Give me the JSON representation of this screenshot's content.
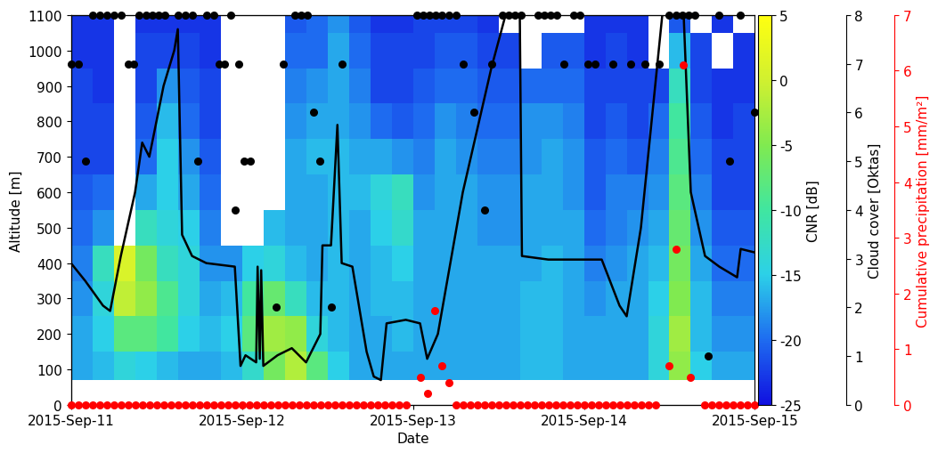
{
  "chart_data": {
    "type": "heatmap",
    "xlabel": "Date",
    "ylabel": "Altitude [m]",
    "xlim": [
      0,
      96
    ],
    "xticks": [
      {
        "value": 0,
        "label": "2015-Sep-11"
      },
      {
        "value": 24,
        "label": "2015-Sep-12"
      },
      {
        "value": 48,
        "label": "2015-Sep-13"
      },
      {
        "value": 72,
        "label": "2015-Sep-14"
      },
      {
        "value": 96,
        "label": "2015-Sep-15"
      }
    ],
    "ylim": [
      0,
      1100
    ],
    "yticks": [
      0,
      100,
      200,
      300,
      400,
      500,
      600,
      700,
      800,
      900,
      1000,
      1100
    ],
    "y2label": "Cloud cover [Oktas]",
    "y2lim": [
      0,
      8
    ],
    "y2ticks": [
      0,
      1,
      2,
      3,
      4,
      5,
      6,
      7,
      8
    ],
    "y3label": "Cumulative precipitation [mm/m²]",
    "y3lim": [
      0,
      7
    ],
    "y3ticks": [
      0,
      1,
      2,
      3,
      4,
      5,
      6,
      7
    ],
    "heatmap": {
      "colorbar_label": "CNR [dB]",
      "colorbar_range": [
        -25,
        5
      ],
      "colorbar_ticks": [
        -25,
        -20,
        -15,
        -10,
        -5,
        0,
        5
      ],
      "colors": [
        "#1010e0",
        "#1e6cf0",
        "#2cd0e8",
        "#40e6a0",
        "#80ea50",
        "#d0f030",
        "#ffff10"
      ],
      "x_edges": [
        0,
        3,
        6,
        9,
        12,
        15,
        18,
        21,
        24,
        27,
        30,
        33,
        36,
        39,
        42,
        45,
        48,
        51,
        54,
        57,
        60,
        63,
        66,
        69,
        72,
        75,
        78,
        81,
        84,
        87,
        90,
        93,
        96
      ],
      "y_edges": [
        70,
        150,
        250,
        350,
        450,
        550,
        650,
        750,
        850,
        950,
        1050,
        1100
      ],
      "cells": [
        [
          -17,
          -17,
          -18,
          -19,
          -20,
          -21,
          -22,
          -22,
          -22,
          -23,
          -23
        ],
        [
          -16,
          -15,
          -14,
          -12,
          -18,
          -20,
          -22,
          -22,
          -23,
          -23,
          -23
        ],
        [
          -14,
          -8,
          -1,
          1,
          null,
          null,
          null,
          null,
          null,
          null,
          null
        ],
        [
          -15,
          -8,
          -4,
          -6,
          -12,
          -17,
          -20,
          -21,
          -22,
          -22,
          -23
        ],
        [
          -16,
          -10,
          -9,
          -12,
          -14,
          -15,
          -15,
          -16,
          -18,
          -22,
          -23
        ],
        [
          -17,
          -15,
          -14,
          -14,
          -15,
          -17,
          -18,
          -20,
          -21,
          -22,
          -23
        ],
        [
          -17,
          -16,
          -17,
          -18,
          -19,
          -20,
          -21,
          -22,
          -22,
          -23,
          -23
        ],
        [
          -16,
          -15,
          -16,
          -18,
          null,
          null,
          null,
          null,
          null,
          null,
          null
        ],
        [
          -13,
          -8,
          -10,
          -15,
          null,
          null,
          null,
          null,
          null,
          null,
          null
        ],
        [
          -6,
          -3,
          -7,
          -14,
          -16,
          null,
          null,
          null,
          null,
          null,
          null
        ],
        [
          -2,
          -4,
          -12,
          -16,
          -17,
          -17,
          -17,
          -18,
          -19,
          -20,
          -21
        ],
        [
          -8,
          -14,
          -16,
          -17,
          -17,
          -17,
          -16,
          -17,
          -18,
          -20,
          -20
        ],
        [
          -15,
          -16,
          -16,
          -16,
          -16,
          -16,
          -16,
          -17,
          -17,
          -17,
          -18
        ],
        [
          -17,
          -17,
          -17,
          -17,
          -17,
          -16,
          -17,
          -18,
          -19,
          -20,
          -21
        ],
        [
          -17,
          -17,
          -16,
          -16,
          -15,
          -14,
          -17,
          -20,
          -22,
          -22,
          -23
        ],
        [
          -17,
          -16,
          -16,
          -15,
          -13,
          -12,
          -18,
          -21,
          -22,
          -22,
          -23
        ],
        [
          -17,
          -17,
          -17,
          -17,
          -17,
          -18,
          -19,
          -20,
          -21,
          -22,
          -22
        ],
        [
          -17,
          -17,
          -17,
          -17,
          -17,
          -17,
          -17,
          -18,
          -20,
          -21,
          -22
        ],
        [
          -17,
          -17,
          -17,
          -17,
          -17,
          -17,
          -18,
          -19,
          -20,
          -21,
          -22
        ],
        [
          -17,
          -17,
          -17,
          -17,
          -18,
          -18,
          -19,
          -20,
          -21,
          -22,
          -23
        ],
        [
          -17,
          -17,
          -17,
          -17,
          -18,
          -18,
          -19,
          -20,
          -21,
          -22,
          null
        ],
        [
          -16,
          -16,
          -16,
          -17,
          -17,
          -17,
          -18,
          -18,
          -20,
          null,
          null
        ],
        [
          -16,
          -16,
          -16,
          -16,
          -17,
          -17,
          -17,
          -18,
          -20,
          -21,
          null
        ],
        [
          -17,
          -17,
          -17,
          -17,
          -17,
          -18,
          -18,
          -19,
          -20,
          -21,
          null
        ],
        [
          -17,
          -17,
          -18,
          -19,
          -20,
          -21,
          -21,
          -22,
          -22,
          -23,
          -23
        ],
        [
          -17,
          -17,
          -17,
          -18,
          -19,
          -19,
          -20,
          -21,
          -22,
          -22,
          -23
        ],
        [
          -17,
          -17,
          -17,
          -17,
          -18,
          -19,
          -21,
          -22,
          -22,
          -23,
          -23
        ],
        [
          -14,
          -14,
          -15,
          -16,
          -17,
          -18,
          -19,
          -20,
          -22,
          null,
          null
        ],
        [
          -4,
          -3,
          -5,
          -6,
          -7,
          -8,
          -9,
          -10,
          -12,
          -16,
          -21
        ],
        [
          -15,
          -16,
          -16,
          -17,
          -18,
          -19,
          -20,
          -21,
          -22,
          -22,
          null
        ],
        [
          -17,
          -18,
          -19,
          -20,
          -21,
          -22,
          -22,
          -23,
          -23,
          null,
          -23
        ],
        [
          -17,
          -18,
          -19,
          -20,
          -21,
          -22,
          -22,
          -22,
          -23,
          -23,
          null
        ]
      ]
    },
    "series": [
      {
        "type": "line",
        "color": "#000000",
        "line_style": "solid",
        "x": [
          0,
          2,
          4.5,
          5.5,
          7,
          9,
          10,
          11,
          12,
          13,
          14.5,
          15,
          15.6,
          17,
          19,
          23,
          23.8,
          24.5,
          26,
          26.2,
          26.5,
          26.7,
          27,
          29,
          31,
          33,
          35,
          35.3,
          36.5,
          37.4,
          38,
          39.5,
          41.5,
          42.5,
          43.5,
          44.3,
          47,
          49,
          50,
          51.5,
          55,
          59,
          61,
          63,
          63.3,
          67,
          74.5,
          77,
          78,
          80,
          82,
          83,
          86,
          87,
          89,
          91,
          93.5,
          94,
          96
        ],
        "values": [
          400,
          350,
          280,
          265,
          420,
          600,
          740,
          700,
          800,
          900,
          1000,
          1060,
          480,
          420,
          400,
          390,
          110,
          140,
          120,
          390,
          130,
          380,
          110,
          140,
          160,
          120,
          200,
          450,
          450,
          790,
          400,
          390,
          150,
          80,
          70,
          230,
          240,
          230,
          130,
          200,
          600,
          950,
          1100,
          1100,
          420,
          410,
          410,
          280,
          250,
          500,
          900,
          1100,
          1100,
          600,
          420,
          390,
          360,
          440,
          430
        ]
      },
      {
        "type": "scatter",
        "axis": "y2",
        "color": "#000000",
        "marker": "o",
        "x": [
          0,
          1,
          2,
          3,
          4,
          5,
          6,
          7,
          8,
          8.8,
          9.6,
          10.5,
          11.4,
          12.3,
          13.2,
          15,
          16,
          17,
          17.8,
          19,
          20,
          20.8,
          21.6,
          22.4,
          23,
          23.5,
          24.3,
          25.2,
          28.8,
          29.8,
          31.4,
          32.3,
          33.2,
          34,
          34.9,
          36.5,
          38,
          48.5,
          49.4,
          50.3,
          51.2,
          52.1,
          53,
          54,
          55,
          56.5,
          58,
          59,
          60.5,
          61.4,
          62.3,
          63.2,
          65.5,
          66.4,
          67.3,
          68.2,
          69.2,
          70.5,
          71.4,
          72.5,
          73.5,
          76,
          78.5,
          80.5,
          82.5,
          84,
          84.9,
          85.8,
          86.7,
          87.6,
          89.5,
          91,
          92.5,
          94,
          96
        ],
        "values": [
          7,
          7,
          5,
          8,
          8,
          8,
          8,
          8,
          7,
          7,
          8,
          8,
          8,
          8,
          8,
          8,
          8,
          8,
          5,
          8,
          8,
          7,
          7,
          8,
          4,
          7,
          5,
          5,
          2,
          7,
          8,
          8,
          8,
          6,
          5,
          2,
          7,
          8,
          8,
          8,
          8,
          8,
          8,
          8,
          7,
          6,
          4,
          7,
          8,
          8,
          8,
          8,
          8,
          8,
          8,
          8,
          7,
          8,
          8,
          7,
          7,
          7,
          7,
          7,
          7,
          8,
          8,
          8,
          8,
          8,
          1,
          8,
          5,
          8,
          6
        ]
      },
      {
        "type": "scatter",
        "axis": "y3",
        "color": "#ff0000",
        "marker": "o",
        "x": [
          0,
          1,
          2,
          3,
          4,
          5,
          6,
          7,
          8,
          9,
          10,
          11,
          12,
          13,
          14,
          15,
          16,
          17,
          18,
          19,
          20,
          21,
          22,
          23,
          24,
          25,
          26,
          27,
          28,
          29,
          30,
          31,
          32,
          33,
          34,
          35,
          36,
          37,
          38,
          39,
          40,
          41,
          42,
          43,
          44,
          45,
          46,
          47,
          49,
          50,
          51,
          52,
          53,
          54,
          55,
          56,
          57,
          58,
          59,
          60,
          61,
          62,
          63,
          64,
          65,
          66,
          67,
          68,
          69,
          70,
          71,
          72,
          73,
          74,
          75,
          76,
          77,
          78,
          79,
          80,
          81,
          82,
          84,
          85,
          86,
          87,
          89,
          90,
          91,
          92,
          93,
          94,
          95,
          96
        ],
        "values": [
          0,
          0,
          0,
          0,
          0,
          0,
          0,
          0,
          0,
          0,
          0,
          0,
          0,
          0,
          0,
          0,
          0,
          0,
          0,
          0,
          0,
          0,
          0,
          0,
          0,
          0,
          0,
          0,
          0,
          0,
          0,
          0,
          0,
          0,
          0,
          0,
          0,
          0,
          0,
          0,
          0,
          0,
          0,
          0,
          0,
          0,
          0,
          0,
          0.5,
          0.2,
          1.7,
          0.7,
          0.4,
          0,
          0,
          0,
          0,
          0,
          0,
          0,
          0,
          0,
          0,
          0,
          0,
          0,
          0,
          0,
          0,
          0,
          0,
          0,
          0,
          0,
          0,
          0,
          0,
          0,
          0,
          0,
          0,
          0,
          0.7,
          2.8,
          6.1,
          0.5,
          0,
          0,
          0,
          0,
          0,
          0,
          0,
          0
        ]
      }
    ]
  }
}
